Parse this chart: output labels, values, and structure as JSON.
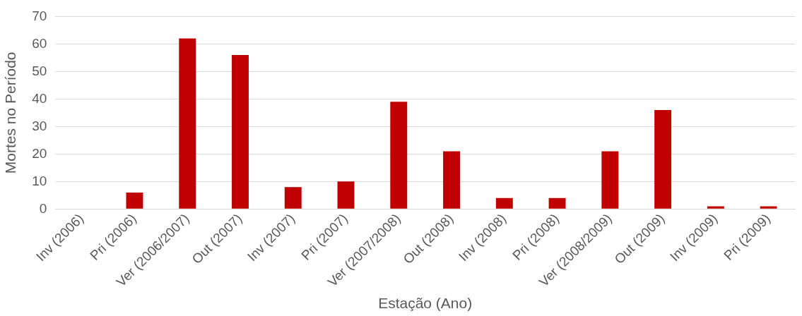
{
  "chart_data": {
    "type": "bar",
    "xlabel": "Estação (Ano)",
    "ylabel": "Mortes no Período",
    "categories": [
      "Inv (2006)",
      "Pri (2006)",
      "Ver (2006/2007)",
      "Out (2007)",
      "Inv (2007)",
      "Pri (2007)",
      "Ver (2007/2008)",
      "Out (2008)",
      "Inv (2008)",
      "Pri (2008)",
      "Ver (2008/2009)",
      "Out (2009)",
      "Inv (2009)",
      "Pri (2009)"
    ],
    "values": [
      0,
      6,
      62,
      56,
      8,
      10,
      39,
      21,
      4,
      4,
      21,
      36,
      1,
      1
    ],
    "color": "#c00000",
    "ylim": [
      0,
      70
    ],
    "yticks": [
      0,
      10,
      20,
      30,
      40,
      50,
      60,
      70
    ],
    "grid": "y",
    "legend": false
  }
}
